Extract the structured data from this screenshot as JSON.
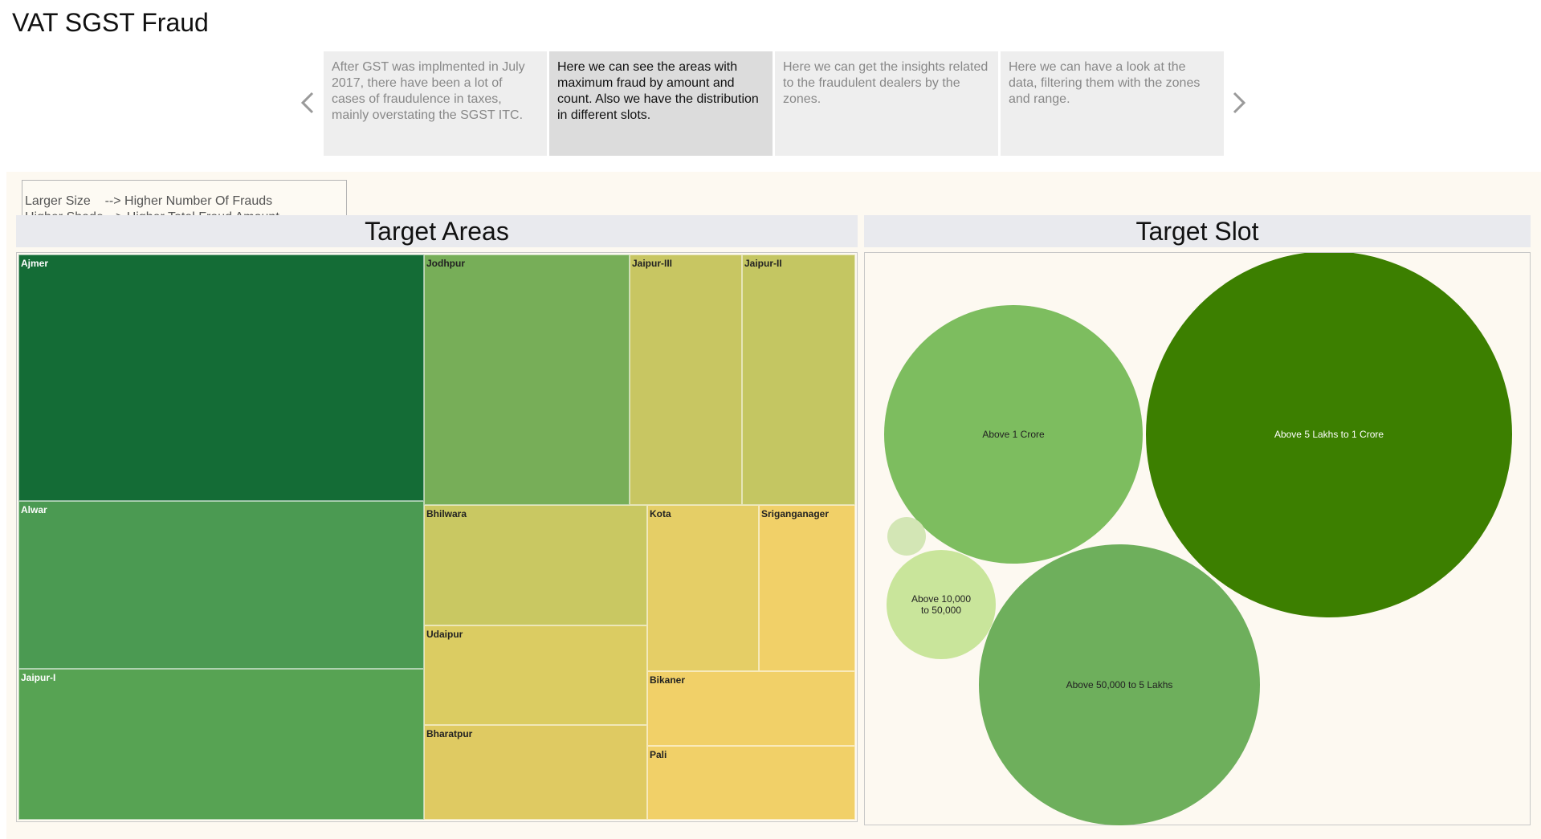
{
  "page": {
    "title": "VAT SGST Fraud"
  },
  "story": {
    "points": [
      {
        "text": "After GST was implmented in July 2017, there have been a lot of cases of fraudulence in taxes, mainly overstating the SGST ITC.",
        "active": false
      },
      {
        "text": "Here we can see the areas with maximum fraud by amount and count. Also we have the distribution in different slots.",
        "active": true
      },
      {
        "text": "Here we can get the insights related to the fraudulent dealers by the zones.",
        "active": false
      },
      {
        "text": "Here we can have a look at the data, filtering them with the zones and range.",
        "active": false
      }
    ],
    "prev_icon": "chevron-left-icon",
    "next_icon": "chevron-right-icon"
  },
  "legend": {
    "line1": "Larger Size    --> Higher Number Of Frauds",
    "line2": "Higher Shade --> Higher Total Fraud Amount"
  },
  "sheets": {
    "areas_title": "Target Areas",
    "slot_title": "Target Slot"
  },
  "treemap": {
    "items": [
      {
        "label": "Ajmer",
        "color": "#146c36",
        "text_color": "#ffffff"
      },
      {
        "label": "Jodhpur",
        "color": "#77ae58",
        "text_color": "#222222"
      },
      {
        "label": "Jaipur-III",
        "color": "#c8c662",
        "text_color": "#222222"
      },
      {
        "label": "Jaipur-II",
        "color": "#c4c662",
        "text_color": "#222222"
      },
      {
        "label": "Alwar",
        "color": "#4b9a52",
        "text_color": "#ffffff"
      },
      {
        "label": "Jaipur-I",
        "color": "#57a353",
        "text_color": "#ffffff"
      },
      {
        "label": "Bhilwara",
        "color": "#c9c862",
        "text_color": "#222222"
      },
      {
        "label": "Udaipur",
        "color": "#dbcc62",
        "text_color": "#222222"
      },
      {
        "label": "Bharatpur",
        "color": "#dfca62",
        "text_color": "#222222"
      },
      {
        "label": "Kota",
        "color": "#e5ce66",
        "text_color": "#222222"
      },
      {
        "label": "Sriganganager",
        "color": "#f1d068",
        "text_color": "#222222"
      },
      {
        "label": "Bikaner",
        "color": "#f1d068",
        "text_color": "#222222"
      },
      {
        "label": "Pali",
        "color": "#f1d068",
        "text_color": "#222222"
      }
    ]
  },
  "bubbles": {
    "items": [
      {
        "label": "Above 1 Crore",
        "color": "#7dbd5f",
        "text_color": "#222222"
      },
      {
        "label": "Above 5 Lakhs to 1 Crore",
        "color": "#3c7f00",
        "text_color": "#ffffff"
      },
      {
        "label": "",
        "color": "#d3e6b5",
        "text_color": "#222222"
      },
      {
        "label": "Above 10,000 to 50,000",
        "color": "#c9e59b",
        "text_color": "#222222"
      },
      {
        "label": "Above 50,000 to 5 Lakhs",
        "color": "#6eaf5c",
        "text_color": "#222222"
      }
    ]
  }
}
